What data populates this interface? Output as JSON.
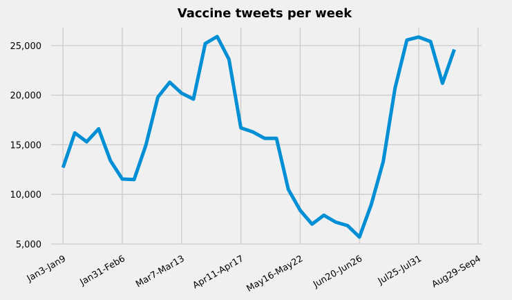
{
  "chart_data": {
    "type": "line",
    "title": "Vaccine tweets per week",
    "xlabel": "",
    "ylabel": "",
    "x_tick_labels": [
      "Jan3-Jan9",
      "Jan31-Feb6",
      "Mar7-Mar13",
      "Apr11-Apr17",
      "May16-May22",
      "Jun20-Jun26",
      "Jul25-Jul31",
      "Aug29-Sep4"
    ],
    "x_tick_indices": [
      0,
      5,
      10,
      15,
      20,
      25,
      30,
      35
    ],
    "y_ticks": [
      "5,000",
      "10,000",
      "15,000",
      "20,000",
      "25,000"
    ],
    "y_tick_values": [
      5000,
      10000,
      15000,
      20000,
      25000
    ],
    "ylim": [
      5000,
      26800
    ],
    "xlim": [
      -1,
      35.3
    ],
    "grid": true,
    "series": [
      {
        "color": "#008fd5",
        "values": [
          12700,
          16200,
          15300,
          16600,
          13400,
          11550,
          11500,
          15000,
          19800,
          21300,
          20200,
          19600,
          25200,
          25900,
          23600,
          16700,
          16300,
          15650,
          15650,
          10500,
          8400,
          7000,
          7900,
          7200,
          6850,
          5700,
          9000,
          13300,
          20700,
          25550,
          25850,
          25400,
          21200,
          24600
        ]
      }
    ]
  }
}
